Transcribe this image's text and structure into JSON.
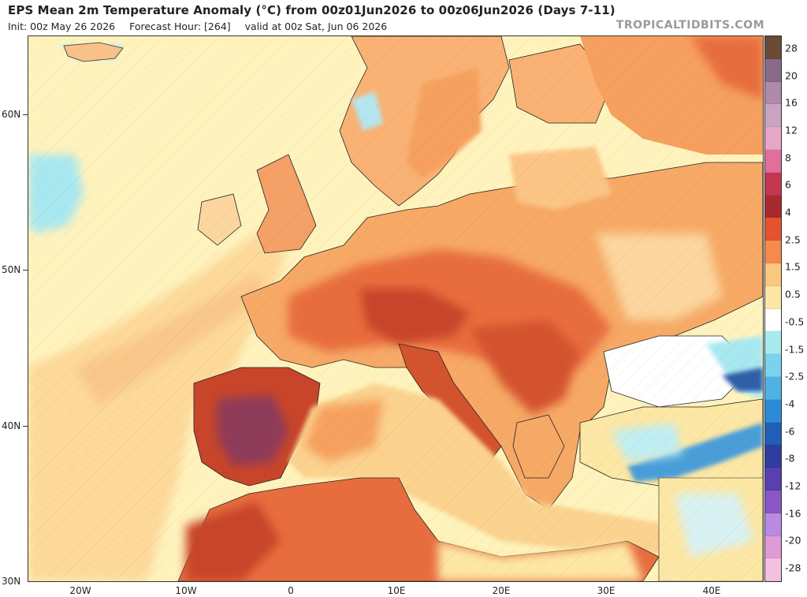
{
  "header": {
    "title": "EPS Mean 2m Temperature Anomaly (°C) from 00z01Jun2026 to 00z06Jun2026 (Days 7-11)",
    "init": "Init: 00z May 26 2026",
    "forecast_hour": "Forecast Hour: [264]",
    "valid": "valid at 00z Sat, Jun 06 2026",
    "watermark": "TROPICALTIDBITS.COM"
  },
  "map": {
    "lat_labels": [
      "60N",
      "50N",
      "40N",
      "30N"
    ],
    "lon_labels": [
      "20W",
      "10W",
      "0",
      "10E",
      "20E",
      "30E",
      "40E"
    ],
    "extent": {
      "lon_min": -25,
      "lon_max": 45,
      "lat_min": 30,
      "lat_max": 65
    },
    "ocean_color": "#fff3bd",
    "colors": {
      "ocean_near_neutral": "#fff2b8",
      "ocean_warm": "#fdd99a",
      "cool_sea": "#a8e8f0",
      "land_warm": "#f9b274",
      "land_hot": "#e86d3e",
      "land_very_hot": "#c8452a",
      "land_extreme": "#8e3a5a",
      "cold_anomaly": "#4a9ed8",
      "border": "#111111"
    }
  },
  "colorbar": {
    "labels": [
      "28",
      "20",
      "16",
      "12",
      "8",
      "6",
      "4",
      "2.5",
      "1.5",
      "0.5",
      "-0.5",
      "-1.5",
      "-2.5",
      "-4",
      "-6",
      "-8",
      "-12",
      "-16",
      "-20",
      "-28"
    ],
    "swatches": [
      "#6b4a36",
      "#8a6a8a",
      "#b08aaa",
      "#c9a3c0",
      "#e7a6c8",
      "#e06f9c",
      "#c43650",
      "#a82a2e",
      "#e5532e",
      "#f58a4b",
      "#fbc77e",
      "#fde7a4",
      "#ffffff",
      "#a6ecef",
      "#7ad3ec",
      "#4fb2e6",
      "#2d8bd6",
      "#1f5fb8",
      "#2f3e9e",
      "#5a3fb0",
      "#8a56c7",
      "#b98be0",
      "#e09ad6",
      "#f3c0e0"
    ]
  }
}
